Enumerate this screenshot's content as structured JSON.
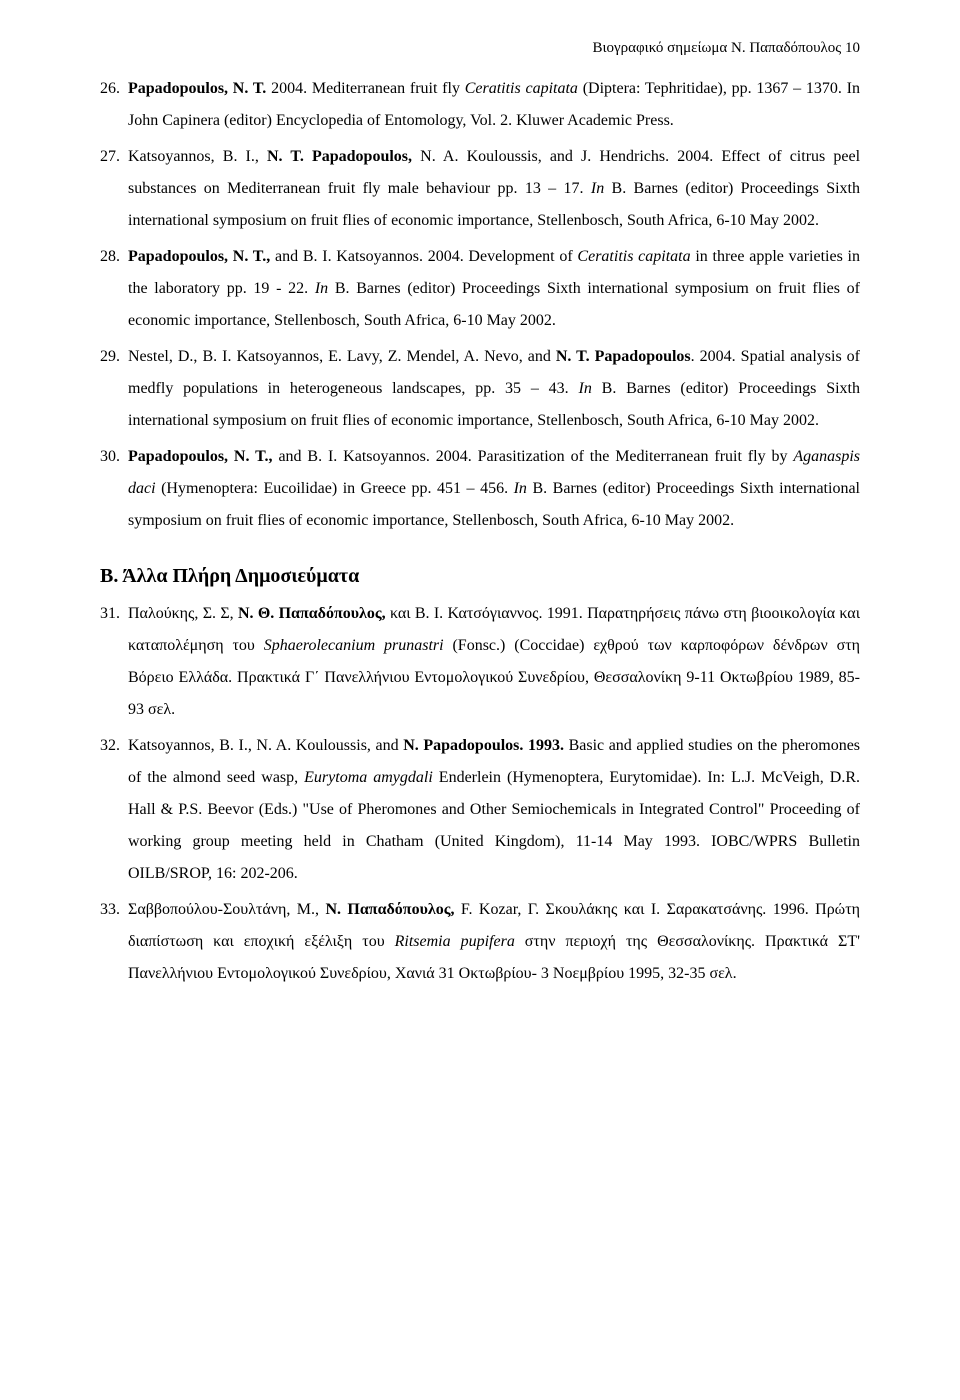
{
  "header": "Βιογραφικό σημείωμα Ν. Παπαδόπουλος 10",
  "entries": [
    {
      "num": "26.",
      "author1": "Papadopoulos, N. T. ",
      "t1": "2004. Mediterranean fruit fly ",
      "i1": "Ceratitis capitata",
      "t2": " (Diptera: Tephritidae), pp. 1367 – 1370. In John Capinera (editor) Encyclopedia of Entomology, Vol. 2. Kluwer Academic Press."
    },
    {
      "num": "27.",
      "t1": "Katsoyannos, B. I., ",
      "author1": "N. T. Papadopoulos, ",
      "t2": "N. A. Kouloussis, and J. Hendrichs. 2004. Effect of citrus peel substances on Mediterranean fruit fly male behaviour pp. 13 – 17. ",
      "i1": "In",
      "t3": " B. Barnes (editor) Proceedings Sixth international symposium on fruit flies of economic importance, Stellenbosch, South Africa, 6-10 May 2002."
    },
    {
      "num": "28.",
      "author1": "Papadopoulos, N. T.,",
      "t1": " and B. I. Katsoyannos. 2004.  Development of ",
      "i1": "Ceratitis capitata",
      "t2": " in three apple varieties in the laboratory pp. 19 - 22. ",
      "i2": "In",
      "t3": " B. Barnes (editor) Proceedings Sixth international symposium on fruit flies of economic importance, Stellenbosch, South Africa, 6-10 May 2002."
    },
    {
      "num": "29.",
      "t1": "Nestel, D., B. I. Katsoyannos, E. Lavy, Z. Mendel, A. Nevo, and ",
      "author1": "N. T. Papadopoulos",
      "t2": ". 2004. Spatial analysis of medfly populations in heterogeneous landscapes, pp. 35 – 43. ",
      "i1": "In",
      "t3": " B. Barnes (editor) Proceedings Sixth international symposium on fruit flies of economic importance, Stellenbosch, South Africa, 6-10 May 2002."
    },
    {
      "num": "30.",
      "author1": "Papadopoulos, N. T.,",
      "t1": " and B. I. Katsoyannos. 2004.  Parasitization of the Mediterranean fruit fly by ",
      "i1": "Aganaspis daci",
      "t2": " (Hymenoptera: Eucoilidae) in Greece pp. 451 – 456. ",
      "i2": "In",
      "t3": " B. Barnes (editor) Proceedings Sixth international symposium on fruit flies of economic importance, Stellenbosch, South Africa, 6-10 May 2002."
    }
  ],
  "sectionB_title": "Β. Άλλα Πλήρη Δημοσιεύματα",
  "sectionB": [
    {
      "num": "31.",
      "t1": "Παλούκης, Σ. Σ, ",
      "author1": "Ν. Θ. Παπαδόπουλος,",
      "t2": " και Β. Ι. Κατσόγιαννος. 1991. Παρατηρήσεις πάνω στη βιοοικολογία και καταπολέμηση του ",
      "i1": "Sphaerolecanium prunastri",
      "t3": " (Fonsc.) (Coccidae) εχθρού των καρποφόρων δένδρων στη Βόρειο Ελλάδα. Πρακτικά Γ΄ Πανελλήνιου Εντομολογικού Συνεδρίου, Θεσσαλονίκη 9-11 Οκτωβρίου 1989, 85-93 σελ."
    },
    {
      "num": "32.",
      "t1": "Katsoyannos, B. I., N. A. Kouloussis, and ",
      "author1": "N. Papadopoulos. 1993.",
      "t2": " Basic and applied studies on the pheromones of the almond seed wasp, ",
      "i1": "Eurytoma amygdali",
      "t3": " Enderlein (Hymenoptera, Eurytomidae). In: L.J. McVeigh, D.R. Hall & P.S. Beevor (Eds.) \"Use of Pheromones and Other Semiochemicals in Integrated Control\" Proceeding of working group meeting held in Chatham (United Kingdom), 11-14 May 1993. IOBC/WPRS Bulletin OILB/SROP, 16: 202-206."
    },
    {
      "num": "33.",
      "t1": "Σαββοπούλου-Σουλτάνη, Μ., ",
      "author1": "Ν. Παπαδόπουλος,",
      "t2": " F. Kozar, Γ. Σκουλάκης και Ι. Σαρακατσάνης. 1996. Πρώτη διαπίστωση και εποχική εξέλιξη του ",
      "i1": "Ritsemia pupifera",
      "t3": " στην περιοχή της Θεσσαλονίκης. Πρακτικά ΣΤ' Πανελλήνιου Εντομολογικού Συνεδρίου, Χανιά 31 Οκτωβρίου- 3 Νοεμβρίου 1995, 32-35 σελ."
    }
  ]
}
